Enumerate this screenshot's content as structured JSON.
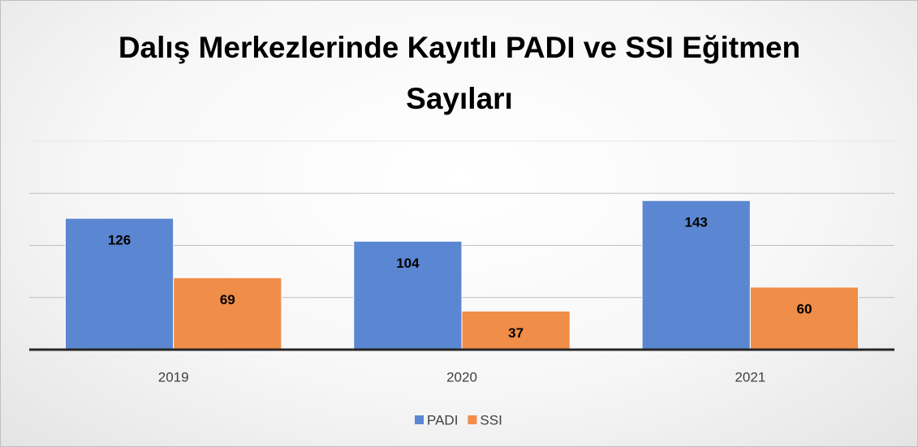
{
  "chart_data": {
    "type": "bar",
    "title": "Dalış Merkezlerinde Kayıtlı PADI ve SSI Eğitmen Sayıları",
    "categories": [
      "2019",
      "2020",
      "2021"
    ],
    "series": [
      {
        "name": "PADI",
        "color": "#5b86d1",
        "values": [
          126,
          104,
          143
        ]
      },
      {
        "name": "SSI",
        "color": "#f08d48",
        "values": [
          69,
          37,
          60
        ]
      }
    ],
    "ylim": [
      0,
      200
    ],
    "yticks": [
      0,
      50,
      100,
      150,
      200
    ],
    "grid": true,
    "legend": "bottom"
  }
}
